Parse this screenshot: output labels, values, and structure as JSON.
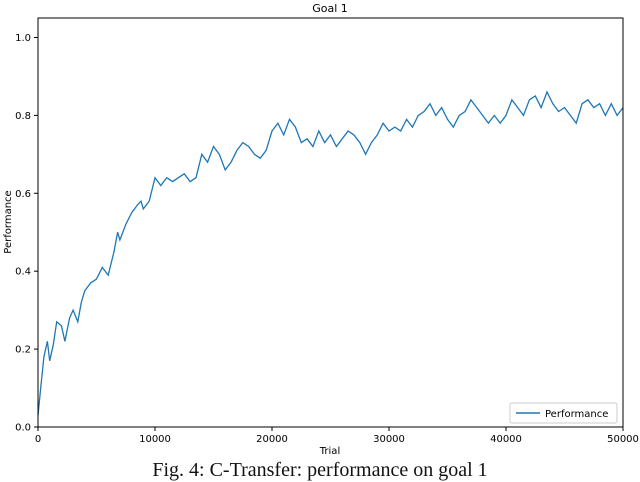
{
  "chart_data": {
    "type": "line",
    "title": "Goal 1",
    "xlabel": "Trial",
    "ylabel": "Performance",
    "xlim": [
      0,
      50000
    ],
    "ylim": [
      0.0,
      1.05
    ],
    "xticks": [
      0,
      10000,
      20000,
      30000,
      40000,
      50000
    ],
    "xtick_labels": [
      "0",
      "10000",
      "20000",
      "30000",
      "40000",
      "50000"
    ],
    "yticks": [
      0.0,
      0.2,
      0.4,
      0.6,
      0.8,
      1.0
    ],
    "ytick_labels": [
      "0.0",
      "0.2",
      "0.4",
      "0.6",
      "0.8",
      "1.0"
    ],
    "grid": false,
    "legend_position": "lower-right",
    "series": [
      {
        "name": "Performance",
        "color": "#1f77b4",
        "x": [
          0,
          200,
          500,
          800,
          1000,
          1300,
          1600,
          2000,
          2300,
          2700,
          3000,
          3400,
          3700,
          4000,
          4500,
          5000,
          5500,
          6000,
          6500,
          6800,
          7000,
          7500,
          8000,
          8500,
          8800,
          9000,
          9500,
          10000,
          10500,
          11000,
          11500,
          12000,
          12500,
          13000,
          13500,
          14000,
          14500,
          15000,
          15500,
          16000,
          16500,
          17000,
          17500,
          18000,
          18500,
          19000,
          19500,
          20000,
          20500,
          21000,
          21500,
          22000,
          22500,
          23000,
          23500,
          24000,
          24500,
          25000,
          25500,
          26000,
          26500,
          27000,
          27500,
          28000,
          28500,
          29000,
          29500,
          30000,
          30500,
          31000,
          31500,
          32000,
          32500,
          33000,
          33500,
          34000,
          34500,
          35000,
          35500,
          36000,
          36500,
          37000,
          37500,
          38000,
          38500,
          39000,
          39500,
          40000,
          40500,
          41000,
          41500,
          42000,
          42500,
          43000,
          43500,
          44000,
          44500,
          45000,
          45500,
          46000,
          46500,
          47000,
          47500,
          48000,
          48500,
          49000,
          49500,
          50000
        ],
        "y": [
          0.03,
          0.09,
          0.18,
          0.22,
          0.17,
          0.21,
          0.27,
          0.26,
          0.22,
          0.28,
          0.3,
          0.27,
          0.32,
          0.35,
          0.37,
          0.38,
          0.41,
          0.39,
          0.45,
          0.5,
          0.48,
          0.52,
          0.55,
          0.57,
          0.58,
          0.56,
          0.58,
          0.64,
          0.62,
          0.64,
          0.63,
          0.64,
          0.65,
          0.63,
          0.64,
          0.7,
          0.68,
          0.72,
          0.7,
          0.66,
          0.68,
          0.71,
          0.73,
          0.72,
          0.7,
          0.69,
          0.71,
          0.76,
          0.78,
          0.75,
          0.79,
          0.77,
          0.73,
          0.74,
          0.72,
          0.76,
          0.73,
          0.75,
          0.72,
          0.74,
          0.76,
          0.75,
          0.73,
          0.7,
          0.73,
          0.75,
          0.78,
          0.76,
          0.77,
          0.76,
          0.79,
          0.77,
          0.8,
          0.81,
          0.83,
          0.8,
          0.82,
          0.79,
          0.77,
          0.8,
          0.81,
          0.84,
          0.82,
          0.8,
          0.78,
          0.8,
          0.78,
          0.8,
          0.84,
          0.82,
          0.8,
          0.84,
          0.85,
          0.82,
          0.86,
          0.83,
          0.81,
          0.82,
          0.8,
          0.78,
          0.83,
          0.84,
          0.82,
          0.83,
          0.8,
          0.83,
          0.8,
          0.82
        ]
      }
    ],
    "legend": [
      {
        "label": "Performance",
        "color": "#1f77b4"
      }
    ]
  },
  "caption": "Fig. 4: C-Transfer: performance on goal 1"
}
